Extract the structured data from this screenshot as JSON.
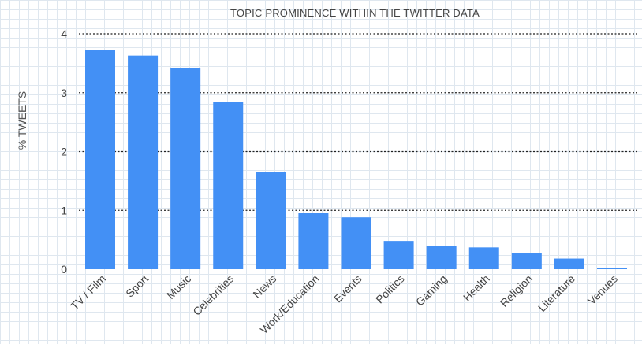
{
  "chart_data": {
    "type": "bar",
    "title": "TOPIC PROMINENCE WITHIN THE TWITTER DATA",
    "xlabel": "",
    "ylabel": "% TWEETS",
    "ylim": [
      0,
      4
    ],
    "yticks": [
      "0",
      "1",
      "2",
      "3",
      "4"
    ],
    "grid": true,
    "bar_color": "#4390f5",
    "categories": [
      "TV / Film",
      "Sport",
      "Music",
      "Celebrities",
      "News",
      "Work/Education",
      "Events",
      "Politics",
      "Gaming",
      "Health",
      "Religion",
      "Literature",
      "Venues"
    ],
    "values": [
      3.72,
      3.63,
      3.42,
      2.84,
      1.65,
      0.95,
      0.88,
      0.48,
      0.4,
      0.37,
      0.27,
      0.18,
      0.02
    ]
  }
}
